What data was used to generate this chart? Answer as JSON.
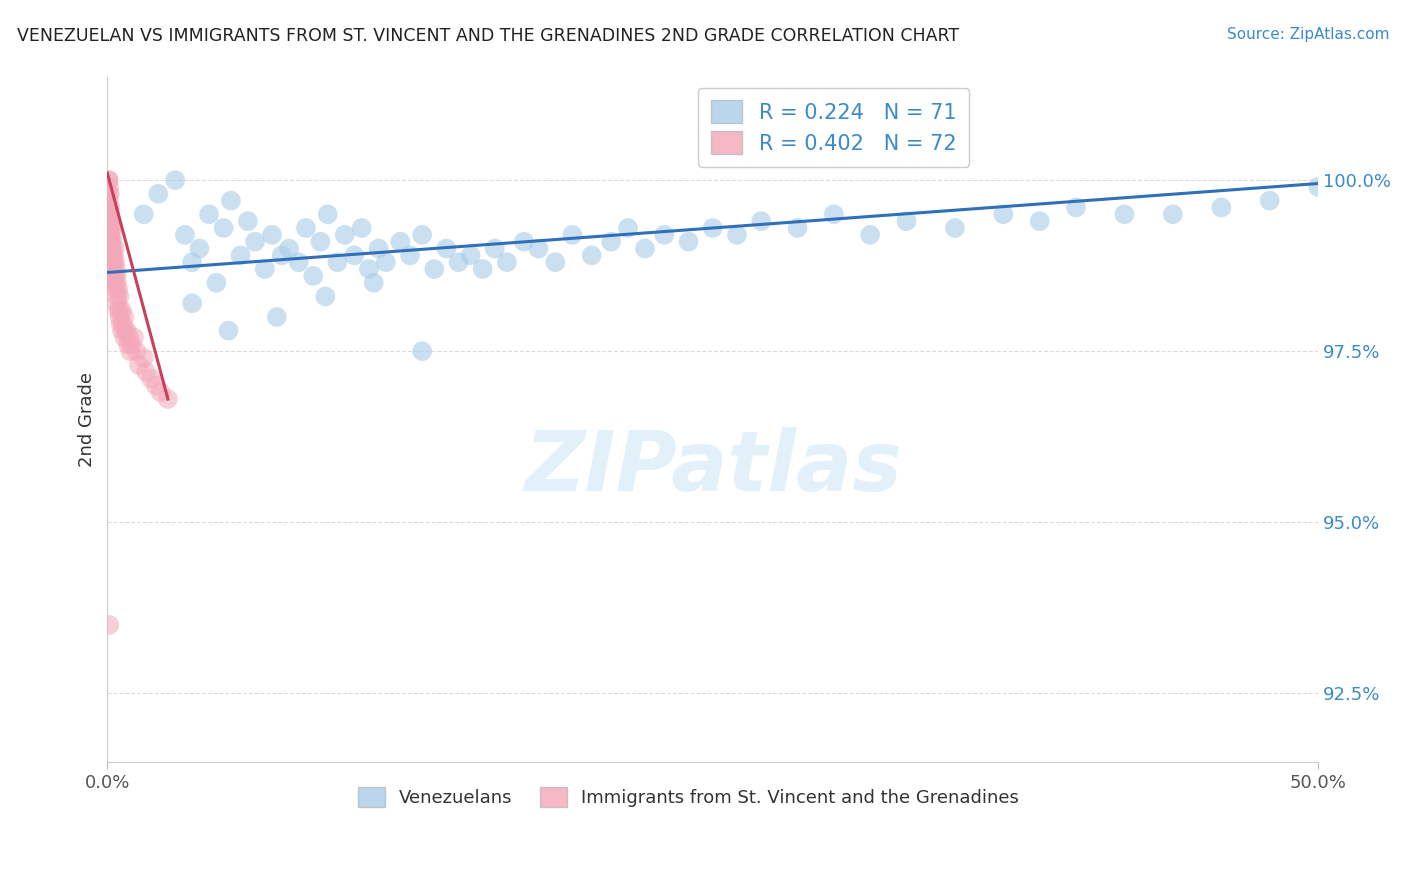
{
  "title": "VENEZUELAN VS IMMIGRANTS FROM ST. VINCENT AND THE GRENADINES 2ND GRADE CORRELATION CHART",
  "source_text": "Source: ZipAtlas.com",
  "ylabel": "2nd Grade",
  "xlim": [
    0.0,
    50.0
  ],
  "ylim": [
    91.5,
    101.5
  ],
  "y_ticks": [
    92.5,
    95.0,
    97.5,
    100.0
  ],
  "x_ticks": [
    0.0,
    50.0
  ],
  "legend_r1": "0.224",
  "legend_n1": "71",
  "legend_r2": "0.402",
  "legend_n2": "72",
  "blue_color": "#a8cce8",
  "pink_color": "#f4a7b9",
  "blue_line_color": "#3070b8",
  "pink_line_color": "#c8405a",
  "legend_r_color": "#3b8bca",
  "watermark_color": "#d0e8f5",
  "blue_scatter_x": [
    1.5,
    2.1,
    2.8,
    3.2,
    3.5,
    3.8,
    4.2,
    4.5,
    4.8,
    5.1,
    5.5,
    5.8,
    6.1,
    6.5,
    6.8,
    7.2,
    7.5,
    7.9,
    8.2,
    8.5,
    8.8,
    9.1,
    9.5,
    9.8,
    10.2,
    10.5,
    10.8,
    11.2,
    11.5,
    12.1,
    12.5,
    13.0,
    13.5,
    14.0,
    14.5,
    15.0,
    15.5,
    16.0,
    16.5,
    17.2,
    17.8,
    18.5,
    19.2,
    20.0,
    20.8,
    21.5,
    22.2,
    23.0,
    24.0,
    25.0,
    26.0,
    27.0,
    28.5,
    30.0,
    31.5,
    33.0,
    35.0,
    37.0,
    38.5,
    40.0,
    42.0,
    44.0,
    46.0,
    48.0,
    50.0,
    3.5,
    5.0,
    7.0,
    9.0,
    11.0,
    13.0
  ],
  "blue_scatter_y": [
    99.5,
    99.8,
    100.0,
    99.2,
    98.8,
    99.0,
    99.5,
    98.5,
    99.3,
    99.7,
    98.9,
    99.4,
    99.1,
    98.7,
    99.2,
    98.9,
    99.0,
    98.8,
    99.3,
    98.6,
    99.1,
    99.5,
    98.8,
    99.2,
    98.9,
    99.3,
    98.7,
    99.0,
    98.8,
    99.1,
    98.9,
    99.2,
    98.7,
    99.0,
    98.8,
    98.9,
    98.7,
    99.0,
    98.8,
    99.1,
    99.0,
    98.8,
    99.2,
    98.9,
    99.1,
    99.3,
    99.0,
    99.2,
    99.1,
    99.3,
    99.2,
    99.4,
    99.3,
    99.5,
    99.2,
    99.4,
    99.3,
    99.5,
    99.4,
    99.6,
    99.5,
    99.5,
    99.6,
    99.7,
    99.9,
    98.2,
    97.8,
    98.0,
    98.3,
    98.5,
    97.5
  ],
  "pink_scatter_x": [
    0.05,
    0.05,
    0.05,
    0.05,
    0.05,
    0.08,
    0.08,
    0.08,
    0.1,
    0.1,
    0.1,
    0.1,
    0.1,
    0.12,
    0.12,
    0.15,
    0.15,
    0.15,
    0.18,
    0.18,
    0.2,
    0.2,
    0.2,
    0.22,
    0.25,
    0.25,
    0.28,
    0.3,
    0.3,
    0.32,
    0.35,
    0.35,
    0.38,
    0.4,
    0.4,
    0.45,
    0.45,
    0.5,
    0.5,
    0.55,
    0.6,
    0.6,
    0.65,
    0.7,
    0.7,
    0.75,
    0.8,
    0.85,
    0.9,
    0.95,
    1.0,
    1.1,
    1.2,
    1.3,
    1.5,
    1.6,
    1.8,
    2.0,
    2.2,
    2.5,
    0.05,
    0.05,
    0.08,
    0.1,
    0.12,
    0.15,
    0.2,
    0.25,
    0.3,
    0.4,
    0.5,
    0.08
  ],
  "pink_scatter_y": [
    100.0,
    99.8,
    99.5,
    99.2,
    99.6,
    99.9,
    99.5,
    99.2,
    99.8,
    99.5,
    99.1,
    98.8,
    99.3,
    99.6,
    99.2,
    99.4,
    99.0,
    98.7,
    99.2,
    98.9,
    99.3,
    99.0,
    98.6,
    99.1,
    98.8,
    98.5,
    98.9,
    99.0,
    98.6,
    98.8,
    98.7,
    98.4,
    98.6,
    98.5,
    98.2,
    98.4,
    98.1,
    98.3,
    98.0,
    97.9,
    98.1,
    97.8,
    97.9,
    98.0,
    97.7,
    97.8,
    97.8,
    97.6,
    97.7,
    97.5,
    97.6,
    97.7,
    97.5,
    97.3,
    97.4,
    97.2,
    97.1,
    97.0,
    96.9,
    96.8,
    100.0,
    99.7,
    99.4,
    99.5,
    99.3,
    99.1,
    98.9,
    98.7,
    98.5,
    98.3,
    98.1,
    93.5
  ],
  "blue_line_x": [
    0.0,
    50.0
  ],
  "blue_line_y": [
    98.65,
    99.95
  ],
  "pink_line_x": [
    0.0,
    2.5
  ],
  "pink_line_y": [
    100.1,
    96.8
  ]
}
